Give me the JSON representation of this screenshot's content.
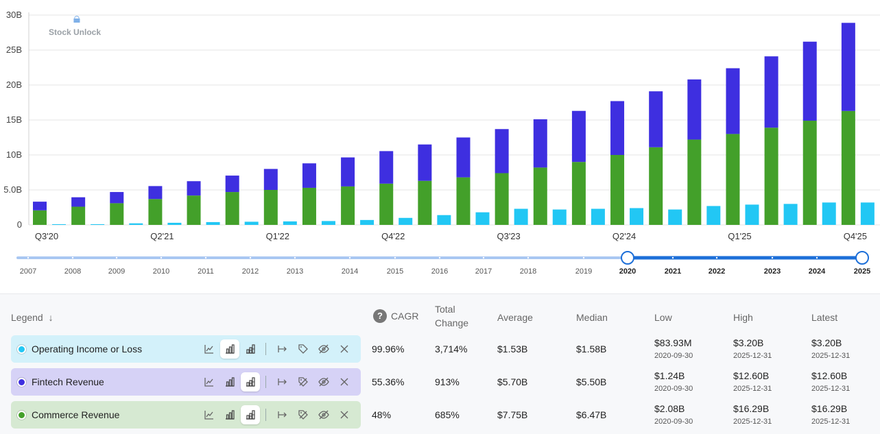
{
  "watermark": {
    "icon": "lock-icon",
    "text": "Stock Unlock"
  },
  "chart_data": {
    "type": "bar",
    "stacked_series": [
      "Commerce Revenue",
      "Fintech Revenue"
    ],
    "categories": [
      "Q3'20",
      "Q4'20",
      "Q1'21",
      "Q2'21",
      "Q3'21",
      "Q4'21",
      "Q1'22",
      "Q2'22",
      "Q3'22",
      "Q4'22",
      "Q1'23",
      "Q2'23",
      "Q3'23",
      "Q4'23",
      "Q1'24",
      "Q2'24",
      "Q3'24",
      "Q4'24",
      "Q1'25",
      "Q2'25",
      "Q3'25",
      "Q4'25"
    ],
    "x_tick_labels": [
      "Q3'20",
      "Q2'21",
      "Q1'22",
      "Q4'22",
      "Q3'23",
      "Q2'24",
      "Q1'25",
      "Q4'25"
    ],
    "y_tick_labels": [
      "0",
      "5.0B",
      "10B",
      "15B",
      "20B",
      "25B",
      "30B"
    ],
    "ylim": [
      0,
      30
    ],
    "y_unit": "B",
    "series": [
      {
        "name": "Commerce Revenue",
        "color": "#43a02a",
        "stack": "main",
        "values": [
          2.08,
          2.6,
          3.1,
          3.7,
          4.2,
          4.7,
          5.0,
          5.3,
          5.5,
          5.9,
          6.3,
          6.8,
          7.4,
          8.2,
          9.0,
          10.0,
          11.1,
          12.2,
          13.0,
          13.9,
          14.9,
          16.29
        ]
      },
      {
        "name": "Fintech Revenue",
        "color": "#3e2fe0",
        "stack": "main",
        "values": [
          1.24,
          1.35,
          1.6,
          1.85,
          2.05,
          2.35,
          3.0,
          3.5,
          4.15,
          4.65,
          5.2,
          5.7,
          6.3,
          6.9,
          7.3,
          7.7,
          8.0,
          8.6,
          9.4,
          10.2,
          11.3,
          12.6
        ]
      },
      {
        "name": "Operating Income or Loss",
        "color": "#22c7f4",
        "stack": "side",
        "values": [
          0.08393,
          0.1,
          0.22,
          0.3,
          0.4,
          0.45,
          0.5,
          0.55,
          0.7,
          1.0,
          1.4,
          1.8,
          2.3,
          2.2,
          2.3,
          2.4,
          2.2,
          2.7,
          2.9,
          3.0,
          3.2,
          3.2
        ]
      }
    ]
  },
  "timeline": {
    "years": [
      "2007",
      "2008",
      "2009",
      "2010",
      "2011",
      "2012",
      "2013",
      "2014",
      "2015",
      "2016",
      "2017",
      "2018",
      "2019",
      "2020",
      "2021",
      "2022",
      "2023",
      "2024",
      "2025"
    ],
    "range_start": "2020",
    "range_end": "2025",
    "track_color": "#a9c7f2",
    "active_color": "#1d6fd8"
  },
  "table": {
    "headers": {
      "legend": "Legend",
      "cagr": "CAGR",
      "total_change_1": "Total",
      "total_change_2": "Change",
      "average": "Average",
      "median": "Median",
      "low": "Low",
      "high": "High",
      "latest": "Latest"
    },
    "rows": [
      {
        "name": "Operating Income or Loss",
        "bg": "#d3f1fa",
        "dot": "#22c7f4",
        "selected_tool": "bar",
        "cagr": "99.96%",
        "total_change": "3,714%",
        "average": "$1.53B",
        "median": "$1.58B",
        "low": "$83.93M",
        "low_date": "2020-09-30",
        "high": "$3.20B",
        "high_date": "2025-12-31",
        "latest": "$3.20B",
        "latest_date": "2025-12-31"
      },
      {
        "name": "Fintech Revenue",
        "bg": "#d6d2f6",
        "dot": "#3e2fe0",
        "selected_tool": "stacked",
        "cagr": "55.36%",
        "total_change": "913%",
        "average": "$5.70B",
        "median": "$5.50B",
        "low": "$1.24B",
        "low_date": "2020-09-30",
        "high": "$12.60B",
        "high_date": "2025-12-31",
        "latest": "$12.60B",
        "latest_date": "2025-12-31"
      },
      {
        "name": "Commerce Revenue",
        "bg": "#d6e9d2",
        "dot": "#43a02a",
        "selected_tool": "stacked",
        "cagr": "48%",
        "total_change": "685%",
        "average": "$7.75B",
        "median": "$6.47B",
        "low": "$2.08B",
        "low_date": "2020-09-30",
        "high": "$16.29B",
        "high_date": "2025-12-31",
        "latest": "$16.29B",
        "latest_date": "2025-12-31"
      }
    ]
  }
}
